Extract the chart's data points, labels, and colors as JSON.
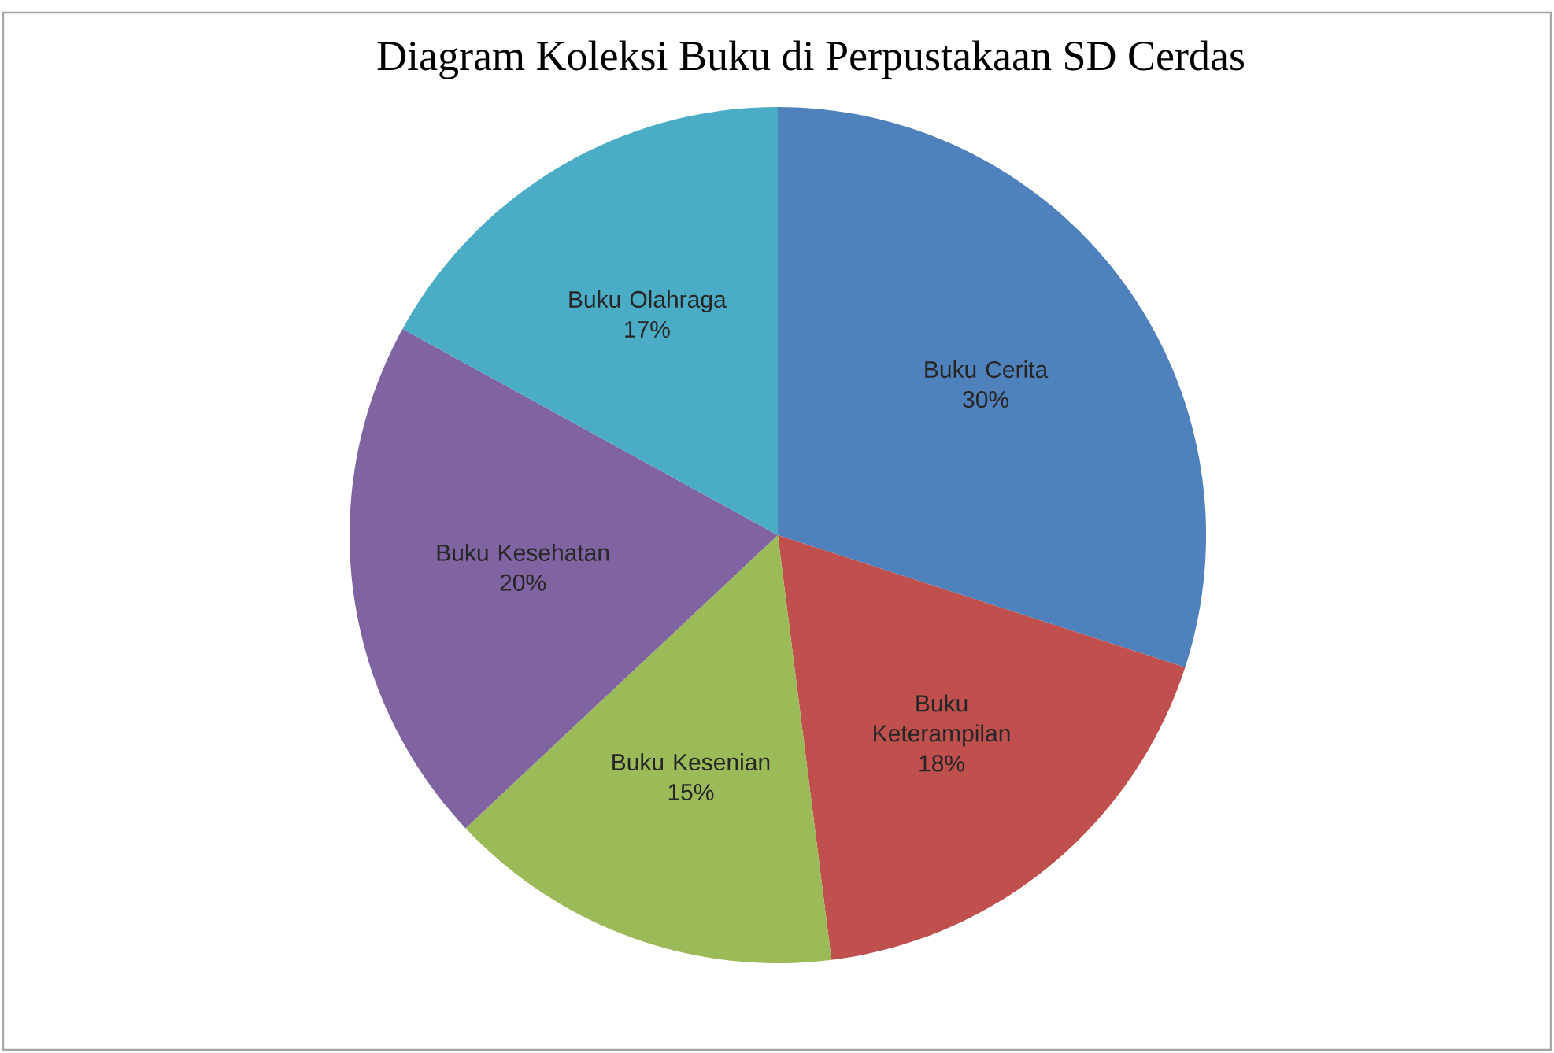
{
  "chart_data": {
    "type": "pie",
    "title": "Diagram Koleksi Buku di Perpustakaan SD Cerdas",
    "categories": [
      "Buku Cerita",
      "Buku Keterampilan",
      "Buku Kesenian",
      "Buku Kesehatan",
      "Buku Olahraga"
    ],
    "values": [
      30,
      18,
      15,
      20,
      17
    ],
    "value_labels": [
      "30%",
      "18%",
      "15%",
      "20%",
      "17%"
    ],
    "colors": [
      "#4f81bd",
      "#c0504d",
      "#9bbb59",
      "#8064a2",
      "#4bacc6"
    ]
  }
}
